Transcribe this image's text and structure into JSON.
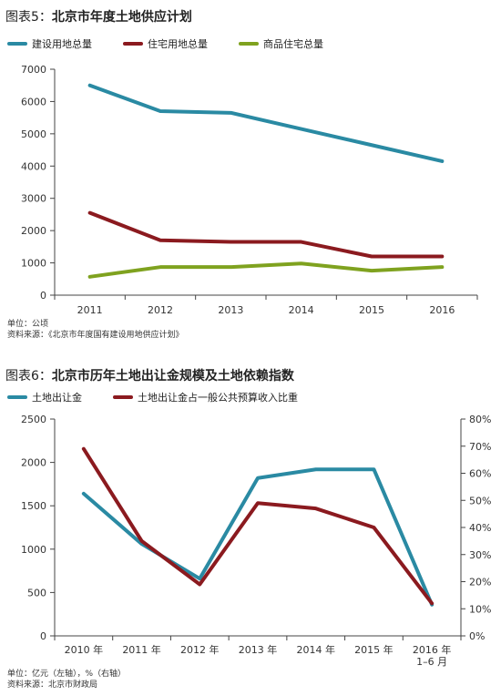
{
  "charts": [
    {
      "title_prefix": "图表5：",
      "title_main": "北京市年度土地供应计划",
      "unit_note": "单位：公顷",
      "source_note": "资料来源：《北京市年度国有建设用地供应计划》"
    },
    {
      "title_prefix": "图表6：",
      "title_main": "北京市历年土地出让金规模及土地依赖指数",
      "unit_note": "单位：亿元（左轴），%（右轴）",
      "source_note": "资料来源：北京市财政局"
    }
  ],
  "chart_data": [
    {
      "type": "line",
      "title": "图表5：北京市年度土地供应计划",
      "categories": [
        "2011",
        "2012",
        "2013",
        "2014",
        "2015",
        "2016"
      ],
      "ylim": [
        0,
        7000
      ],
      "yticks": [
        "0",
        "1000",
        "2000",
        "3000",
        "4000",
        "5000",
        "6000",
        "7000"
      ],
      "grid": false,
      "legend": "top",
      "series": [
        {
          "name": "建设用地总量",
          "color": "#2a8aa3",
          "values": [
            6500,
            5700,
            5650,
            5150,
            4650,
            4150
          ]
        },
        {
          "name": "住宅用地总量",
          "color": "#8b1a1f",
          "values": [
            2550,
            1700,
            1650,
            1650,
            1200,
            1200
          ]
        },
        {
          "name": "商品住宅总量",
          "color": "#7fa21f",
          "values": [
            570,
            870,
            870,
            980,
            760,
            870
          ]
        }
      ]
    },
    {
      "type": "line",
      "title": "图表6：北京市历年土地出让金规模及土地依赖指数",
      "categories": [
        "2010 年",
        "2011 年",
        "2012 年",
        "2013 年",
        "2014 年",
        "2015 年",
        "2016 年\n1–6 月"
      ],
      "ylim_left": [
        0,
        2500
      ],
      "ylim_right": [
        0,
        80
      ],
      "yticks_left": [
        "0",
        "500",
        "1000",
        "1500",
        "2000",
        "2500"
      ],
      "yticks_right": [
        "0%",
        "10%",
        "20%",
        "30%",
        "40%",
        "50%",
        "60%",
        "70%",
        "80%"
      ],
      "grid": false,
      "legend": "top",
      "series": [
        {
          "name": "土地出让金",
          "axis": "left",
          "color": "#2a8aa3",
          "values": [
            1640,
            1060,
            660,
            1820,
            1920,
            1920,
            360
          ]
        },
        {
          "name": "土地出让金占一般公共预算收入比重",
          "axis": "right",
          "color": "#8b1a1f",
          "values": [
            69,
            35,
            19,
            49,
            47,
            40,
            12
          ]
        }
      ]
    }
  ]
}
